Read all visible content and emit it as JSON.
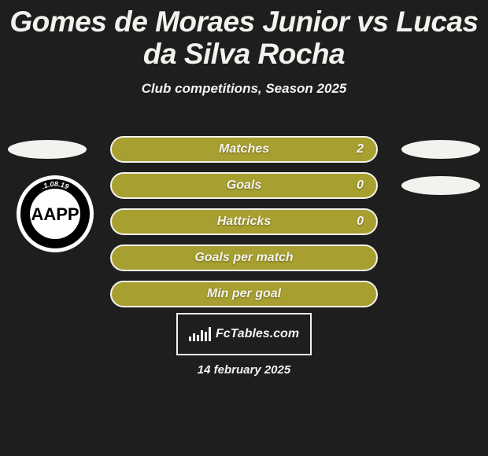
{
  "colors": {
    "background": "#1e1e1e",
    "title": "#f4f2ee",
    "subtitle": "#f4f2ee",
    "bar_bg": "#a79f2f",
    "bar_border": "#f4f2ee",
    "bar_text": "#f5f4f0",
    "pill": "#f4f2ee",
    "footer_border": "#f4f2ee",
    "footer_text": "#f4f2ee",
    "chart_icon": "#f4f2ee",
    "date_text": "#f4f2ee",
    "badge_outer": "#ffffff",
    "badge_ring": "#000000",
    "badge_inner": "#ffffff",
    "badge_text": "#000000"
  },
  "typography": {
    "title_fontsize": 37,
    "subtitle_fontsize": 17,
    "bar_label_fontsize": 16,
    "bar_value_fontsize": 16,
    "brand_fontsize": 16,
    "date_fontsize": 15,
    "badge_letters_fontsize": 22,
    "badge_arc_fontsize": 9
  },
  "title": "Gomes de Moraes Junior vs Lucas da Silva Rocha",
  "subtitle": "Club competitions, Season 2025",
  "rows": [
    {
      "label": "Matches",
      "value_right": "2",
      "show_left_pill": true,
      "show_right_pill": true
    },
    {
      "label": "Goals",
      "value_right": "0",
      "show_left_pill": false,
      "show_right_pill": true
    },
    {
      "label": "Hattricks",
      "value_right": "0",
      "show_left_pill": false,
      "show_right_pill": false
    },
    {
      "label": "Goals per match",
      "value_right": "",
      "show_left_pill": false,
      "show_right_pill": false
    },
    {
      "label": "Min per goal",
      "value_right": "",
      "show_left_pill": false,
      "show_right_pill": false
    }
  ],
  "badge": {
    "letters": "AAPP",
    "arc_text": ".1.08.19"
  },
  "footer": {
    "brand": "FcTables.com",
    "chart_icon_bars": [
      6,
      10,
      8,
      14,
      12,
      18
    ]
  },
  "date": "14 february 2025"
}
